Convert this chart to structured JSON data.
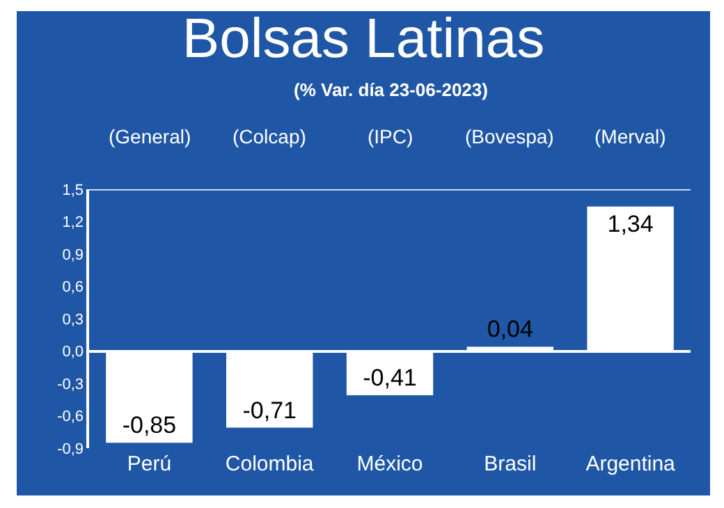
{
  "chart_data": {
    "type": "bar",
    "title": "Bolsas Latinas",
    "subtitle": "(% Var. día 23-06-2023)",
    "categories": [
      "Perú",
      "Colombia",
      "México",
      "Brasil",
      "Argentina"
    ],
    "values": [
      -0.85,
      -0.71,
      -0.41,
      0.04,
      1.34
    ],
    "value_labels": [
      "-0,85",
      "-0,71",
      "-0,41",
      "0,04",
      "1,34"
    ],
    "color": "#ffffff",
    "annotations": [
      "(General)",
      "(Colcap)",
      "(IPC)",
      "(Bovespa)",
      "(Merval)"
    ],
    "ylim": [
      -0.9,
      1.5
    ],
    "yticks": [
      {
        "value": -0.9,
        "label": "-0,9"
      },
      {
        "value": -0.6,
        "label": "-0,6"
      },
      {
        "value": -0.3,
        "label": "-0,3"
      },
      {
        "value": 0,
        "label": "0,0"
      },
      {
        "value": 0.3,
        "label": "0,3"
      },
      {
        "value": 0.6,
        "label": "0,6"
      },
      {
        "value": 0.9,
        "label": "0,9"
      },
      {
        "value": 1.2,
        "label": "1,2"
      },
      {
        "value": 1.5,
        "label": "1,5"
      }
    ],
    "legend": false
  }
}
